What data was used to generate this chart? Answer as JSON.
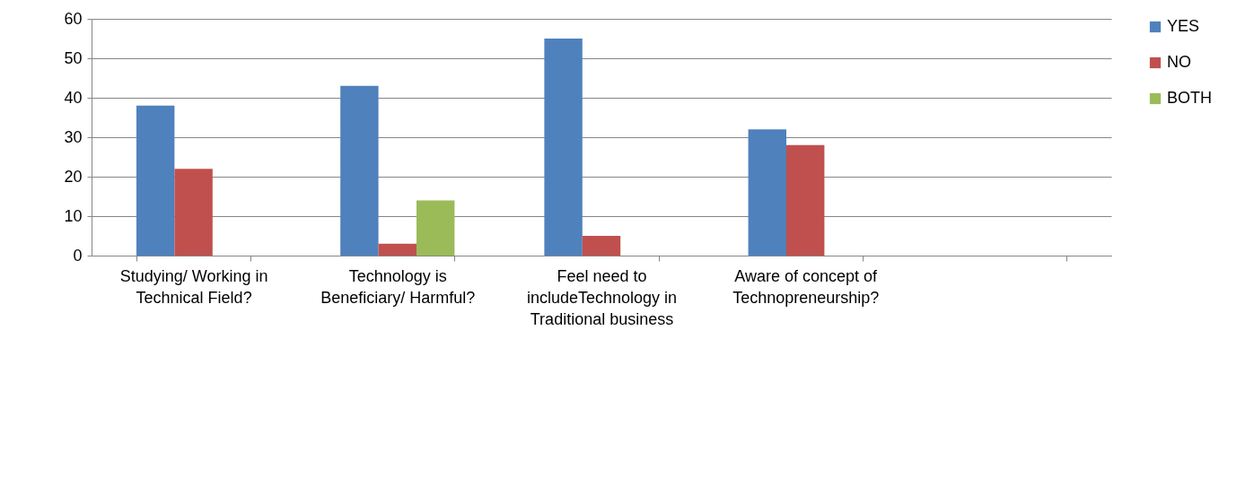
{
  "chart_data": {
    "type": "bar",
    "categories": [
      "Studying/ Working in Technical Field?",
      "Technology is Beneficiary/ Harmful?",
      "Feel need to includeTechnology in Traditional business",
      "Aware of concept of Technopreneurship?",
      null
    ],
    "series": [
      {
        "name": "YES",
        "color": "#4f81bd",
        "values": [
          38,
          43,
          55,
          32,
          null
        ]
      },
      {
        "name": "NO",
        "color": "#c0504d",
        "values": [
          22,
          3,
          5,
          28,
          null
        ]
      },
      {
        "name": "BOTH",
        "color": "#9bbb59",
        "values": [
          null,
          14,
          null,
          null,
          null
        ]
      }
    ],
    "ylim": [
      0,
      60
    ],
    "yticks": [
      0,
      10,
      20,
      30,
      40,
      50,
      60
    ],
    "grid": "y",
    "legend": "right"
  }
}
